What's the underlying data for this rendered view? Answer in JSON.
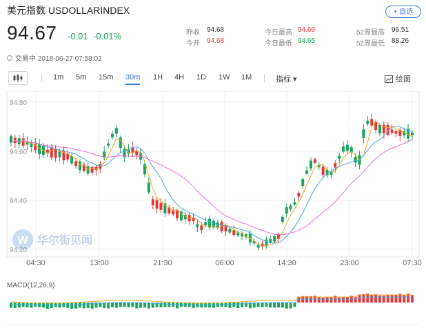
{
  "header": {
    "title": "美元指数  USDOLLARINDEX",
    "add_button": "+ 自选",
    "price": "94.67",
    "change": "-0.01",
    "change_pct": "-0.01%",
    "status": "交易中 2018-06-27 07:58:02",
    "stats": {
      "prev_close_label": "昨收",
      "prev_close": "94.68",
      "open_label": "今开",
      "open": "94.68",
      "high_label": "今日最高",
      "high": "94.69",
      "low_label": "今日最低",
      "low": "94.65",
      "wk52_high_label": "52周最高",
      "wk52_high": "96.51",
      "wk52_low_label": "52周最低",
      "wk52_low": "88.26"
    }
  },
  "toolbar": {
    "periods": [
      "1m",
      "5m",
      "15m",
      "30m",
      "1H",
      "4H",
      "1D",
      "1W",
      "1M"
    ],
    "active": "30m",
    "indicator": "指标 ▾",
    "draw": "绘图"
  },
  "chart": {
    "watermark": "华尔街见闻",
    "y_ticks": [
      "94.80",
      "94.60",
      "94.40",
      "94.20"
    ],
    "x_ticks": [
      "04:30",
      "13:00",
      "21:30",
      "06:00",
      "14:30",
      "23:00",
      "07:30"
    ],
    "macd_label": "MACD(12,26,9)",
    "up_color": "#e4393c",
    "down_color": "#19a55b",
    "ma_colors": [
      "#f5a623",
      "#4aa8e8",
      "#f06fd6"
    ]
  }
}
